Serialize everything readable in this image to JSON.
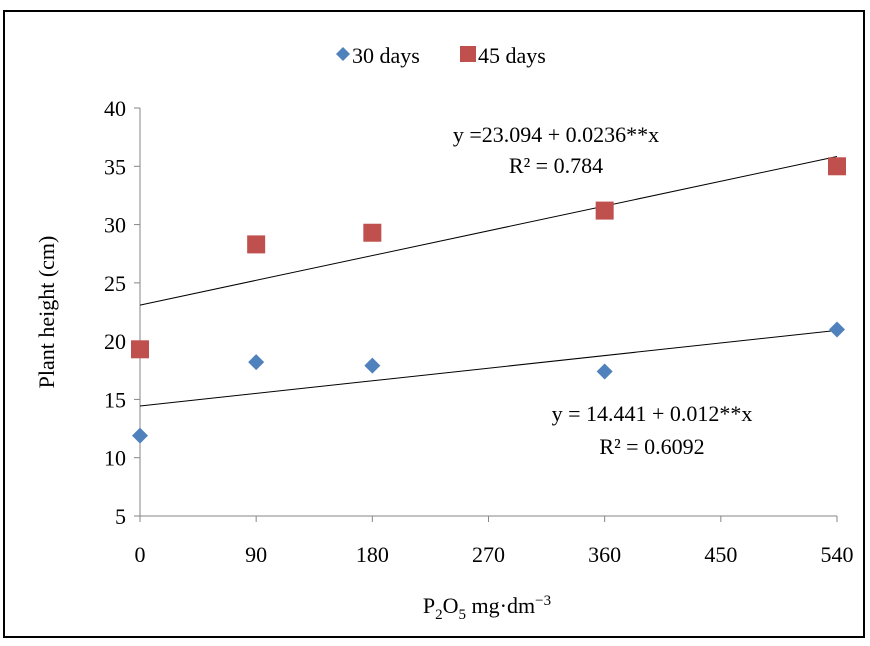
{
  "chart_data": {
    "type": "scatter",
    "title": "",
    "xlabel": {
      "base": "P",
      "sub1": "2",
      "mid": "O",
      "sub2": "5",
      "unit": " mg·dm",
      "sup": "−3"
    },
    "ylabel": "Plant height (cm)",
    "x_ticks": [
      "0",
      "90",
      "180",
      "270",
      "360",
      "450",
      "540"
    ],
    "y_ticks": [
      "5",
      "10",
      "15",
      "20",
      "25",
      "30",
      "35",
      "40"
    ],
    "xlim": [
      0,
      540
    ],
    "ylim": [
      5,
      40
    ],
    "grid": false,
    "legend_position": "top",
    "series": [
      {
        "name": "30 days",
        "marker": "diamond",
        "color": "#4f81bd",
        "x": [
          0,
          90,
          180,
          360,
          540
        ],
        "y": [
          11.9,
          18.2,
          17.9,
          17.4,
          21.0
        ],
        "trendline": {
          "intercept": 14.441,
          "slope": 0.012
        },
        "equation": "y = 14.441 + 0.012**x",
        "r2": "R² = 0.6092"
      },
      {
        "name": "45 days",
        "marker": "square",
        "color": "#c0504d",
        "x": [
          0,
          90,
          180,
          360,
          540
        ],
        "y": [
          19.3,
          28.3,
          29.3,
          31.2,
          35.0
        ],
        "trendline": {
          "intercept": 23.094,
          "slope": 0.0236
        },
        "equation": "y =23.094 + 0.0236**x",
        "r2": "R² = 0.784"
      }
    ]
  }
}
